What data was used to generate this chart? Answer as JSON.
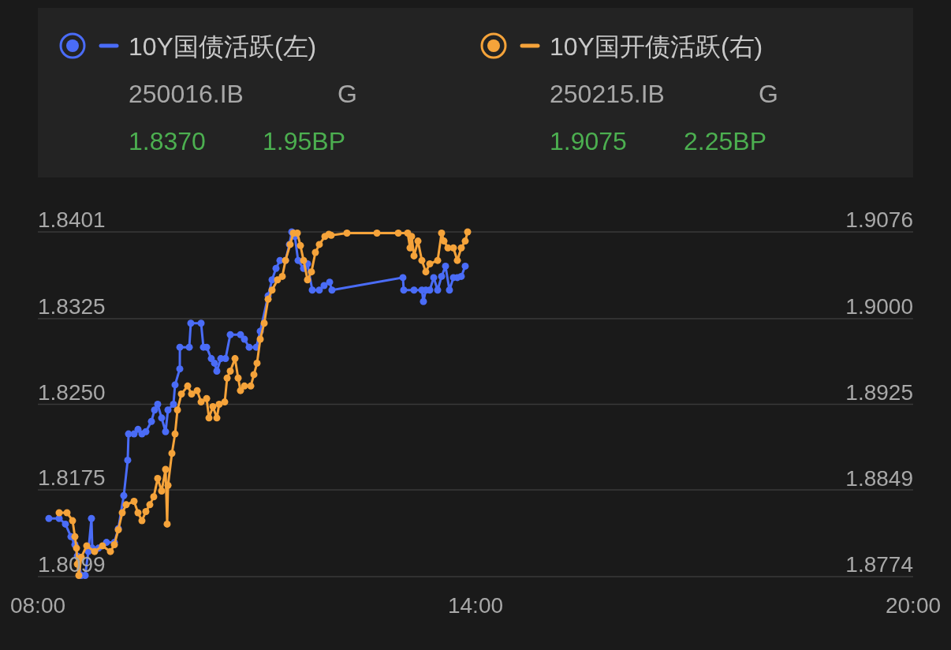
{
  "chart_data": {
    "type": "line",
    "marker": "circle",
    "line_style": "solid",
    "grid": "y",
    "legend": "top",
    "xlim": [
      8,
      20
    ],
    "xticks": [
      {
        "value": 8,
        "label": "08:00"
      },
      {
        "value": 14,
        "label": "14:00"
      },
      {
        "value": 20,
        "label": "20:00"
      }
    ],
    "ylim": [
      1.8099,
      1.8401
    ],
    "yticks": [
      1.8099,
      1.8175,
      {
        "value": 1.825,
        "label": "1.8250"
      },
      1.8325,
      1.8401
    ],
    "y2lim": [
      1.8774,
      1.9076
    ],
    "y2ticks": [
      1.8774,
      1.8849,
      1.8925,
      {
        "value": 1.9,
        "label": "1.9000"
      },
      1.9076
    ],
    "annotations": [
      "250016.IB",
      "G",
      "1.8370",
      "1.95BP",
      "250215.IB",
      "G",
      "1.9075",
      "2.25BP"
    ],
    "series": [
      {
        "name": "10Y国债活跃(左)",
        "color": "#4a6cf7",
        "x": [
          8.151,
          8.292,
          8.378,
          8.454,
          8.508,
          8.541,
          8.595,
          8.649,
          8.692,
          8.735,
          8.746,
          8.832,
          8.941,
          9.049,
          9.103,
          9.178,
          9.232,
          9.243,
          9.319,
          9.373,
          9.427,
          9.481,
          9.557,
          9.6,
          9.643,
          9.697,
          9.751,
          9.784,
          9.859,
          9.881,
          9.946,
          9.947,
          10.076,
          10.097,
          10.238,
          10.27,
          10.314,
          10.378,
          10.422,
          10.454,
          10.508,
          10.573,
          10.638,
          10.778,
          10.832,
          10.897,
          10.995,
          11.049,
          11.157,
          11.211,
          11.265,
          11.319,
          11.395,
          11.449,
          11.481,
          11.524,
          11.568,
          11.643,
          11.697,
          11.762,
          11.859,
          11.924,
          12.0,
          12.032,
          13.005,
          13.016,
          13.157,
          13.265,
          13.286,
          13.319,
          13.373,
          13.427,
          13.481,
          13.535,
          13.589,
          13.643,
          13.697,
          13.751,
          13.805,
          13.859
        ],
        "values": [
          1.815,
          1.815,
          1.8145,
          1.8134,
          1.8127,
          1.8117,
          1.81,
          1.81,
          1.8121,
          1.815,
          1.8124,
          1.8124,
          1.8129,
          1.8129,
          1.8141,
          1.817,
          1.8201,
          1.8224,
          1.8224,
          1.8228,
          1.8224,
          1.8226,
          1.8235,
          1.8245,
          1.825,
          1.8238,
          1.8226,
          1.8245,
          1.825,
          1.8267,
          1.8281,
          1.83,
          1.83,
          1.8321,
          1.8321,
          1.83,
          1.83,
          1.829,
          1.8286,
          1.8279,
          1.829,
          1.829,
          1.8311,
          1.8311,
          1.8307,
          1.83,
          1.83,
          1.8314,
          1.8345,
          1.8359,
          1.8369,
          1.8376,
          1.8376,
          1.839,
          1.8401,
          1.8397,
          1.8376,
          1.8369,
          1.8373,
          1.835,
          1.835,
          1.8354,
          1.8357,
          1.835,
          1.8361,
          1.835,
          1.835,
          1.835,
          1.834,
          1.835,
          1.835,
          1.8361,
          1.835,
          1.8362,
          1.8371,
          1.835,
          1.8361,
          1.8361,
          1.8362,
          1.8371
        ]
      },
      {
        "name": "10Y国开债活跃(右)",
        "color": "#f5a33a",
        "axis": "y2",
        "x": [
          8.292,
          8.4,
          8.476,
          8.508,
          8.53,
          8.541,
          8.562,
          8.595,
          8.67,
          8.778,
          8.886,
          8.995,
          9.049,
          9.103,
          9.157,
          9.211,
          9.319,
          9.373,
          9.427,
          9.481,
          9.535,
          9.589,
          9.643,
          9.697,
          9.751,
          9.773,
          9.784,
          9.838,
          9.881,
          9.914,
          9.968,
          10.054,
          10.108,
          10.184,
          10.238,
          10.314,
          10.346,
          10.4,
          10.454,
          10.486,
          10.562,
          10.595,
          10.638,
          10.703,
          10.746,
          10.778,
          10.832,
          10.919,
          10.962,
          11.005,
          11.049,
          11.103,
          11.157,
          11.211,
          11.286,
          11.351,
          11.395,
          11.459,
          11.503,
          11.557,
          11.6,
          11.643,
          11.697,
          11.751,
          11.805,
          11.859,
          11.935,
          11.989,
          12.022,
          12.238,
          12.649,
          12.941,
          13.07,
          13.103,
          13.124,
          13.157,
          13.211,
          13.265,
          13.319,
          13.373,
          13.481,
          13.535,
          13.568,
          13.622,
          13.697,
          13.751,
          13.805,
          13.859,
          13.892
        ],
        "values": [
          1.883,
          1.883,
          1.8823,
          1.8809,
          1.8799,
          1.8785,
          1.8775,
          1.8791,
          1.8801,
          1.8796,
          1.8801,
          1.8796,
          1.8802,
          1.8815,
          1.883,
          1.8837,
          1.884,
          1.883,
          1.8823,
          1.8831,
          1.8837,
          1.8844,
          1.886,
          1.8849,
          1.8868,
          1.882,
          1.8854,
          1.8882,
          1.8899,
          1.892,
          1.8934,
          1.8941,
          1.8934,
          1.8937,
          1.8927,
          1.893,
          1.8913,
          1.8923,
          1.8913,
          1.8925,
          1.8927,
          1.8948,
          1.8954,
          1.8965,
          1.8948,
          1.8937,
          1.8941,
          1.8941,
          1.8951,
          1.8961,
          1.8982,
          1.8996,
          1.9017,
          1.9025,
          1.9034,
          1.9037,
          1.9051,
          1.9065,
          1.9075,
          1.9075,
          1.9064,
          1.9051,
          1.9034,
          1.9041,
          1.9058,
          1.9065,
          1.9072,
          1.9074,
          1.9073,
          1.9075,
          1.9075,
          1.9075,
          1.9075,
          1.9062,
          1.9072,
          1.9055,
          1.9068,
          1.9051,
          1.9041,
          1.9048,
          1.9051,
          1.9075,
          1.9068,
          1.9062,
          1.9062,
          1.9051,
          1.9062,
          1.9068,
          1.9076
        ]
      }
    ]
  }
}
